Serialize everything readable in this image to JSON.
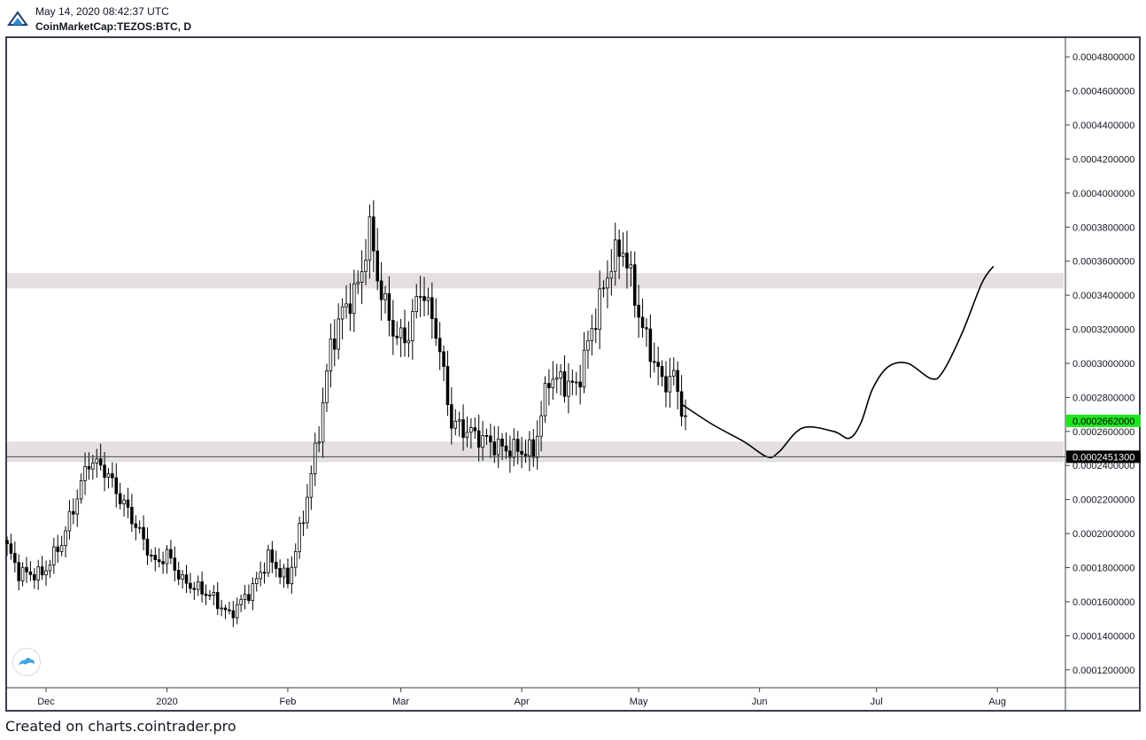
{
  "header": {
    "timestamp": "May 14, 2020 08:42:37 UTC",
    "symbol": "CoinMarketCap:TEZOS:BTC, D"
  },
  "footer": {
    "text": "Created on charts.cointrader.pro"
  },
  "icons": {
    "logo": "cointrader-logo-icon",
    "badge": "cloud-logo-icon"
  },
  "colors": {
    "bull": "#ffffff",
    "bear": "#000000",
    "zone": "#e3dfe2",
    "current_price": "#1ee51e",
    "marker": "#000000"
  },
  "chart_data": {
    "type": "candlestick",
    "title": "",
    "y_range": [
      0.00011,
      0.000491
    ],
    "y_ticks": [
      "0.0001200000",
      "0.0001400000",
      "0.0001600000",
      "0.0001800000",
      "0.0002000000",
      "0.0002200000",
      "0.0002400000",
      "0.0002600000",
      "0.0002800000",
      "0.0003000000",
      "0.0003200000",
      "0.0003400000",
      "0.0003600000",
      "0.0003800000",
      "0.0004000000",
      "0.0004200000",
      "0.0004400000",
      "0.0004600000",
      "0.0004800000"
    ],
    "x_range": [
      "2019-11-21",
      "2020-08-18"
    ],
    "x_ticks": [
      {
        "label": "Dec",
        "date": "2019-12-01"
      },
      {
        "label": "2020",
        "date": "2020-01-01"
      },
      {
        "label": "Feb",
        "date": "2020-02-01"
      },
      {
        "label": "Mar",
        "date": "2020-03-01"
      },
      {
        "label": "Apr",
        "date": "2020-04-01"
      },
      {
        "label": "May",
        "date": "2020-05-01"
      },
      {
        "label": "Jun",
        "date": "2020-06-01"
      },
      {
        "label": "Jul",
        "date": "2020-07-01"
      },
      {
        "label": "Aug",
        "date": "2020-08-01"
      }
    ],
    "zones": [
      {
        "from": 0.000344,
        "to": 0.000353
      },
      {
        "from": 0.000242,
        "to": 0.000254
      }
    ],
    "horizontal_lines": [
      0.00024513
    ],
    "price_labels": [
      {
        "value": 0.0002662,
        "text": "0.0002662000",
        "style": "current"
      },
      {
        "value": 0.00024513,
        "text": "0.0002451300",
        "style": "marker"
      }
    ],
    "close_keypoints": [
      {
        "date": "2019-11-21",
        "close": 0.000192
      },
      {
        "date": "2019-11-24",
        "close": 0.000177
      },
      {
        "date": "2019-11-30",
        "close": 0.000176
      },
      {
        "date": "2019-12-05",
        "close": 0.000195
      },
      {
        "date": "2019-12-08",
        "close": 0.000215
      },
      {
        "date": "2019-12-12",
        "close": 0.000243
      },
      {
        "date": "2019-12-16",
        "close": 0.000238
      },
      {
        "date": "2019-12-19",
        "close": 0.000225
      },
      {
        "date": "2019-12-24",
        "close": 0.000205
      },
      {
        "date": "2019-12-29",
        "close": 0.000182
      },
      {
        "date": "2020-01-01",
        "close": 0.000188
      },
      {
        "date": "2020-01-05",
        "close": 0.000172
      },
      {
        "date": "2020-01-12",
        "close": 0.000164
      },
      {
        "date": "2020-01-17",
        "close": 0.000152
      },
      {
        "date": "2020-01-23",
        "close": 0.000168
      },
      {
        "date": "2020-01-27",
        "close": 0.000186
      },
      {
        "date": "2020-02-01",
        "close": 0.000172
      },
      {
        "date": "2020-02-05",
        "close": 0.00021
      },
      {
        "date": "2020-02-09",
        "close": 0.00026
      },
      {
        "date": "2020-02-12",
        "close": 0.00031
      },
      {
        "date": "2020-02-15",
        "close": 0.00033
      },
      {
        "date": "2020-02-19",
        "close": 0.000345
      },
      {
        "date": "2020-02-22",
        "close": 0.000378
      },
      {
        "date": "2020-02-25",
        "close": 0.00034
      },
      {
        "date": "2020-02-29",
        "close": 0.000314
      },
      {
        "date": "2020-03-03",
        "close": 0.000317
      },
      {
        "date": "2020-03-06",
        "close": 0.000345
      },
      {
        "date": "2020-03-10",
        "close": 0.00032
      },
      {
        "date": "2020-03-14",
        "close": 0.000265
      },
      {
        "date": "2020-03-20",
        "close": 0.000258
      },
      {
        "date": "2020-03-27",
        "close": 0.00025
      },
      {
        "date": "2020-04-04",
        "close": 0.000248
      },
      {
        "date": "2020-04-08",
        "close": 0.000292
      },
      {
        "date": "2020-04-15",
        "close": 0.000286
      },
      {
        "date": "2020-04-19",
        "close": 0.00032
      },
      {
        "date": "2020-04-24",
        "close": 0.00036
      },
      {
        "date": "2020-04-27",
        "close": 0.000368
      },
      {
        "date": "2020-05-02",
        "close": 0.00032
      },
      {
        "date": "2020-05-07",
        "close": 0.000289
      },
      {
        "date": "2020-05-10",
        "close": 0.000292
      },
      {
        "date": "2020-05-13",
        "close": 0.000266
      }
    ],
    "projection": [
      {
        "date": "2020-05-12",
        "y": 0.000276
      },
      {
        "date": "2020-05-20",
        "y": 0.000264
      },
      {
        "date": "2020-05-28",
        "y": 0.000254
      },
      {
        "date": "2020-06-03",
        "y": 0.000245
      },
      {
        "date": "2020-06-06",
        "y": 0.000248
      },
      {
        "date": "2020-06-12",
        "y": 0.000262
      },
      {
        "date": "2020-06-20",
        "y": 0.00026
      },
      {
        "date": "2020-06-24",
        "y": 0.000256
      },
      {
        "date": "2020-06-27",
        "y": 0.000265
      },
      {
        "date": "2020-06-30",
        "y": 0.000285
      },
      {
        "date": "2020-07-04",
        "y": 0.000298
      },
      {
        "date": "2020-07-09",
        "y": 0.0003
      },
      {
        "date": "2020-07-15",
        "y": 0.000291
      },
      {
        "date": "2020-07-18",
        "y": 0.000295
      },
      {
        "date": "2020-07-23",
        "y": 0.000318
      },
      {
        "date": "2020-07-28",
        "y": 0.000347
      },
      {
        "date": "2020-07-31",
        "y": 0.000357
      }
    ]
  }
}
